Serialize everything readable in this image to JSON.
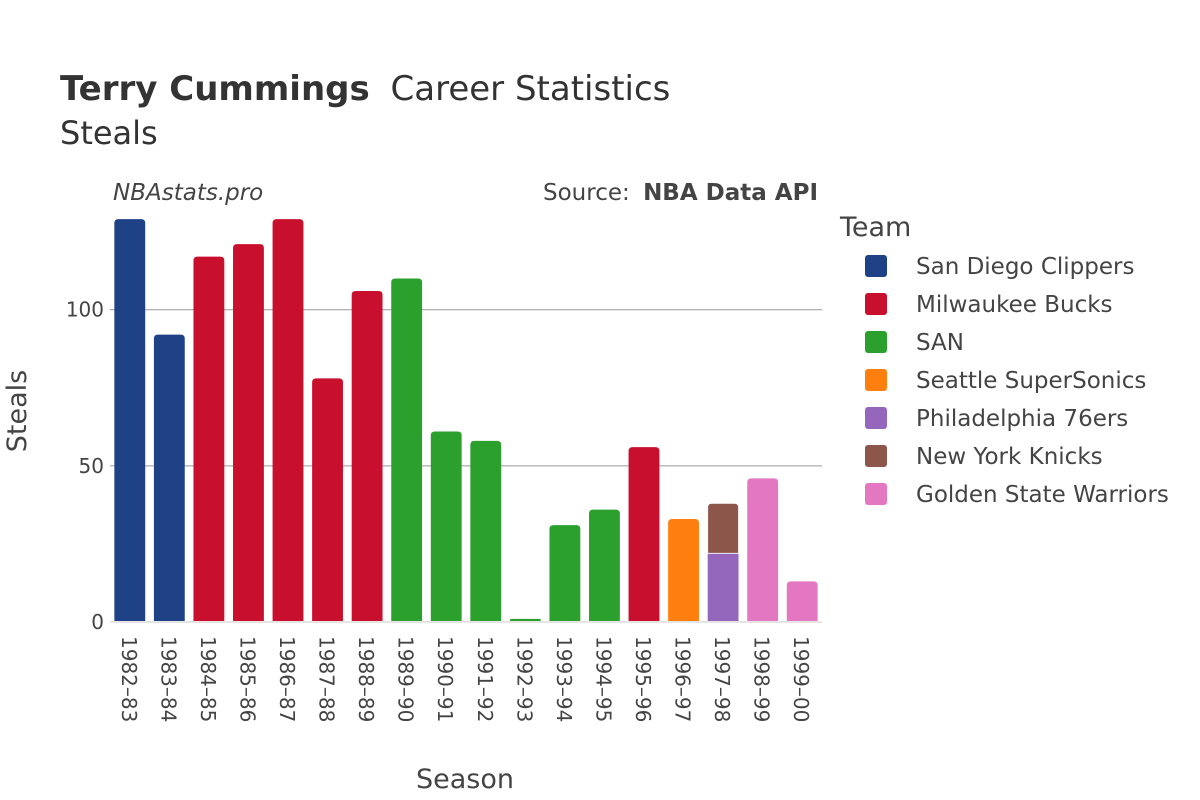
{
  "chart_data": {
    "type": "bar",
    "title": {
      "player": "Terry Cummings",
      "rest": "Career Statistics",
      "subtitle": "Steals"
    },
    "watermark": "NBAstats.pro",
    "source": {
      "prefix": "Source:",
      "name": "NBA Data API"
    },
    "xlabel": "Season",
    "ylabel": "Steals",
    "ylim": [
      0,
      130
    ],
    "yticks": [
      0,
      50,
      100
    ],
    "grid": true,
    "legend": {
      "title": "Team",
      "placement": "right",
      "entries": [
        {
          "name": "San Diego Clippers",
          "color": "#1f4287"
        },
        {
          "name": "Milwaukee Bucks",
          "color": "#c8102e"
        },
        {
          "name": "SAN",
          "color": "#2ca02c"
        },
        {
          "name": "Seattle SuperSonics",
          "color": "#ff7f0e"
        },
        {
          "name": "Philadelphia 76ers",
          "color": "#9467bd"
        },
        {
          "name": "New York Knicks",
          "color": "#8c564b"
        },
        {
          "name": "Golden State Warriors",
          "color": "#e377c2"
        }
      ]
    },
    "categories": [
      "1982–83",
      "1983–84",
      "1984–85",
      "1985–86",
      "1986–87",
      "1987–88",
      "1988–89",
      "1989–90",
      "1990–91",
      "1991–92",
      "1992–93",
      "1993–94",
      "1994–95",
      "1995–96",
      "1996–97",
      "1997–98",
      "1998–99",
      "1999–00"
    ],
    "bars": [
      {
        "season": "1982–83",
        "segments": [
          {
            "team": "San Diego Clippers",
            "value": 129
          }
        ]
      },
      {
        "season": "1983–84",
        "segments": [
          {
            "team": "San Diego Clippers",
            "value": 92
          }
        ]
      },
      {
        "season": "1984–85",
        "segments": [
          {
            "team": "Milwaukee Bucks",
            "value": 117
          }
        ]
      },
      {
        "season": "1985–86",
        "segments": [
          {
            "team": "Milwaukee Bucks",
            "value": 121
          }
        ]
      },
      {
        "season": "1986–87",
        "segments": [
          {
            "team": "Milwaukee Bucks",
            "value": 129
          }
        ]
      },
      {
        "season": "1987–88",
        "segments": [
          {
            "team": "Milwaukee Bucks",
            "value": 78
          }
        ]
      },
      {
        "season": "1988–89",
        "segments": [
          {
            "team": "Milwaukee Bucks",
            "value": 106
          }
        ]
      },
      {
        "season": "1989–90",
        "segments": [
          {
            "team": "SAN",
            "value": 110
          }
        ]
      },
      {
        "season": "1990–91",
        "segments": [
          {
            "team": "SAN",
            "value": 61
          }
        ]
      },
      {
        "season": "1991–92",
        "segments": [
          {
            "team": "SAN",
            "value": 58
          }
        ]
      },
      {
        "season": "1992–93",
        "segments": [
          {
            "team": "SAN",
            "value": 1
          }
        ]
      },
      {
        "season": "1993–94",
        "segments": [
          {
            "team": "SAN",
            "value": 31
          }
        ]
      },
      {
        "season": "1994–95",
        "segments": [
          {
            "team": "SAN",
            "value": 36
          }
        ]
      },
      {
        "season": "1995–96",
        "segments": [
          {
            "team": "Milwaukee Bucks",
            "value": 56
          }
        ]
      },
      {
        "season": "1996–97",
        "segments": [
          {
            "team": "Seattle SuperSonics",
            "value": 33
          }
        ]
      },
      {
        "season": "1997–98",
        "segments": [
          {
            "team": "Philadelphia 76ers",
            "value": 22
          },
          {
            "team": "New York Knicks",
            "value": 16
          }
        ]
      },
      {
        "season": "1998–99",
        "segments": [
          {
            "team": "Golden State Warriors",
            "value": 46
          }
        ]
      },
      {
        "season": "1999–00",
        "segments": [
          {
            "team": "Golden State Warriors",
            "value": 13
          }
        ]
      }
    ]
  }
}
